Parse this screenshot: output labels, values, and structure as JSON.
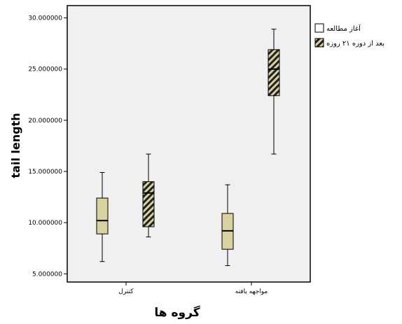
{
  "chart_data": {
    "type": "boxplot",
    "xlabel": "گروه ها",
    "ylabel": "tail length",
    "ylim": [
      4.2,
      31.2
    ],
    "yticks": [
      5,
      10,
      15,
      20,
      25,
      30
    ],
    "ytick_labels": [
      "5.000000",
      "10.000000",
      "15.000000",
      "20.000000",
      "25.000000",
      "30.000000"
    ],
    "categories": [
      "کنترل",
      "مواجهه یافته"
    ],
    "grid": false,
    "legend_position": "top-right",
    "background_color": "#f0f0f0",
    "box_color": "#d8d1a0",
    "hatch_color": "#222222",
    "series": [
      {
        "name": "آغاز مطالعه",
        "pattern": "solid",
        "boxes": [
          {
            "category": "کنترل",
            "min": 6.2,
            "q1": 8.9,
            "median": 10.2,
            "q3": 12.4,
            "max": 14.9
          },
          {
            "category": "مواجهه یافته",
            "min": 5.8,
            "q1": 7.4,
            "median": 9.2,
            "q3": 10.9,
            "max": 13.7
          }
        ]
      },
      {
        "name": "بعد از دوره ۲۱ روزه",
        "pattern": "hatched",
        "boxes": [
          {
            "category": "کنترل",
            "min": 8.6,
            "q1": 9.6,
            "median": 12.9,
            "q3": 14.0,
            "max": 16.7
          },
          {
            "category": "مواجهه یافته",
            "min": 16.7,
            "q1": 22.4,
            "median": 25.0,
            "q3": 26.9,
            "max": 28.9
          }
        ]
      }
    ]
  }
}
